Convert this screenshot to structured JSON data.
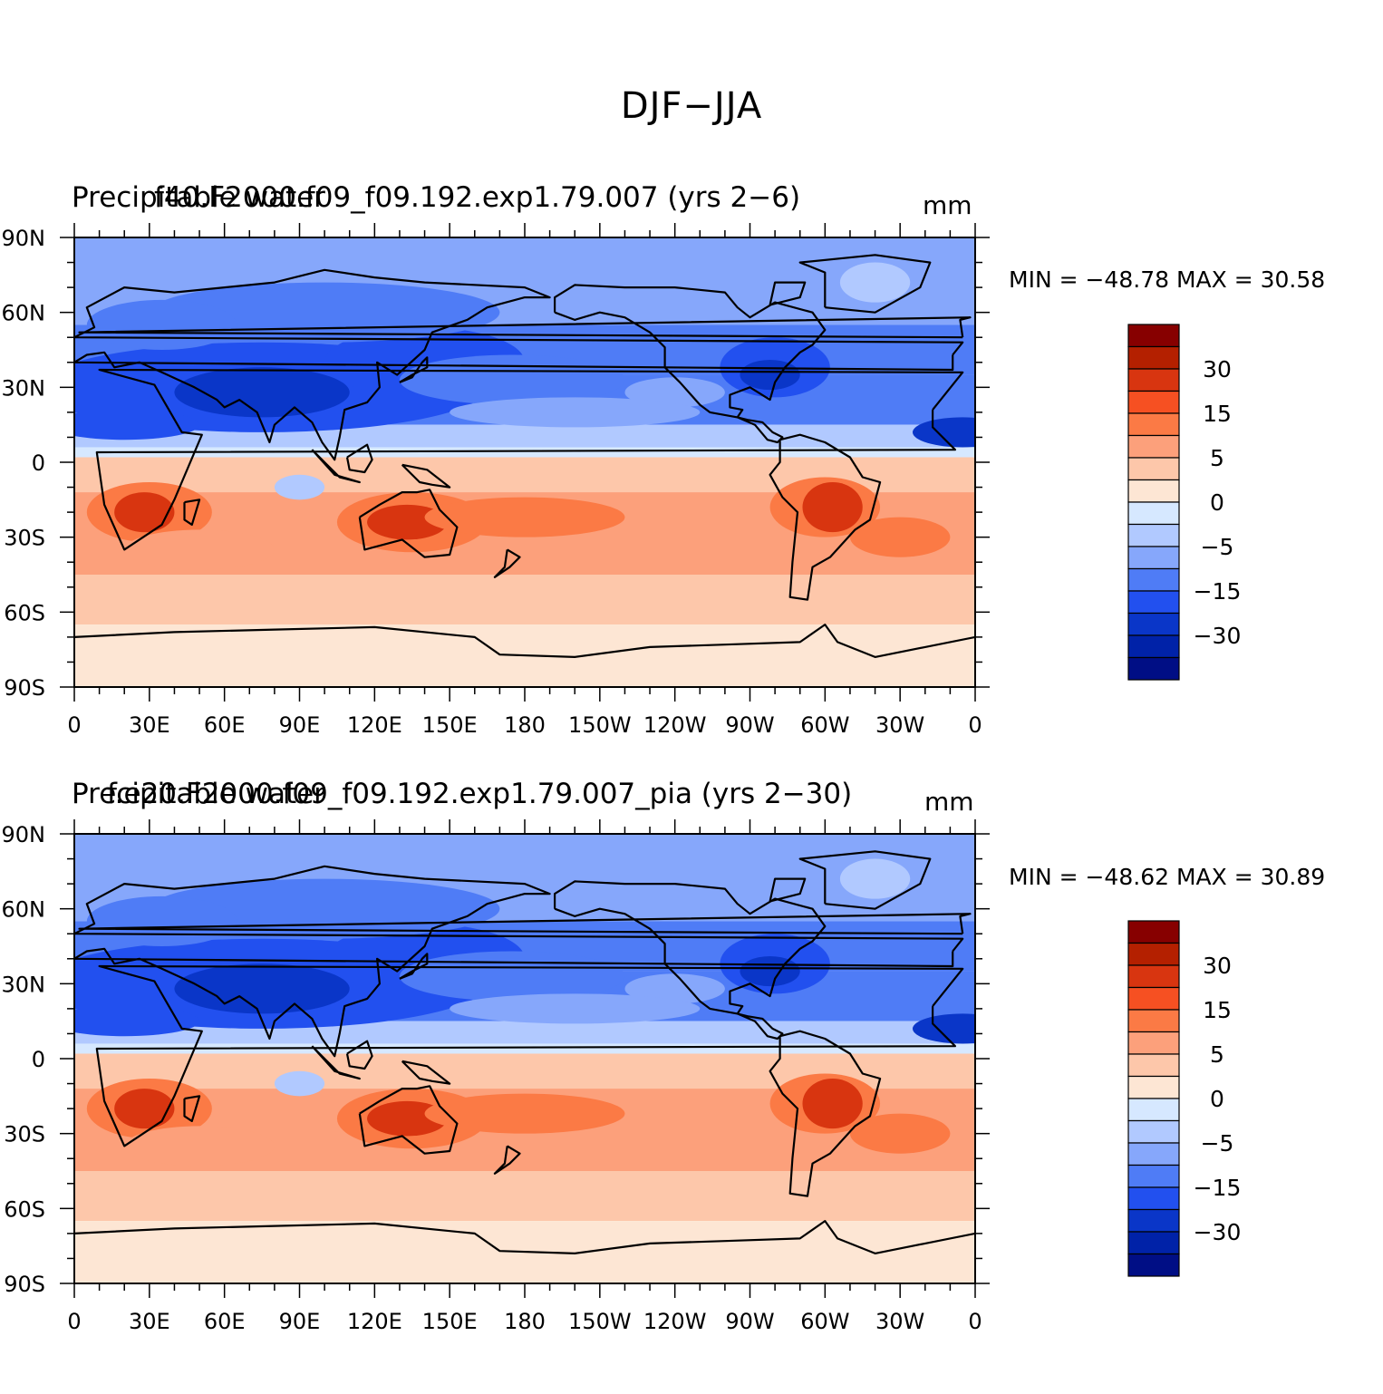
{
  "figure": {
    "title": "DJF−JJA"
  },
  "panels": [
    {
      "case_title": "f40.F2000.f09_f09.192.exp1.79.007 (yrs 2−6)",
      "variable": "Precipitable water",
      "units": "mm",
      "min_max": "MIN = −48.78  MAX =   30.58"
    },
    {
      "case_title": "f.e20.F2000.f09_f09.192.exp1.79.007_pia (yrs 2−30)",
      "variable": "Precipitable water",
      "units": "mm",
      "min_max": "MIN = −48.62  MAX =   30.89"
    }
  ],
  "chart_data": {
    "type": "map",
    "projection": "cylindrical equidistant",
    "lon_ticks": [
      "0",
      "30E",
      "60E",
      "90E",
      "120E",
      "150E",
      "180",
      "150W",
      "120W",
      "90W",
      "60W",
      "30W",
      "0"
    ],
    "lat_ticks": [
      "90N",
      "60N",
      "30N",
      "0",
      "30S",
      "60S",
      "90S"
    ],
    "colorbar": {
      "labels": [
        "30",
        "15",
        "5",
        "0",
        "−5",
        "−15",
        "−30"
      ],
      "colors": [
        "#870000",
        "#b42000",
        "#d83510",
        "#f65022",
        "#fb7a45",
        "#fca07b",
        "#fdc7aa",
        "#fde6d4",
        "#d6e8ff",
        "#b1c9ff",
        "#86a7fb",
        "#4f7cf6",
        "#2250ef",
        "#0a36c8",
        "#0022a8",
        "#000e85"
      ]
    },
    "field_colors": {
      "neg_strong": "#0a36c8",
      "neg_mid": "#2250ef",
      "neg_weak": "#4f7cf6",
      "neg_light": "#86a7fb",
      "neg_faint": "#b1c9ff",
      "near_zero_neg": "#d6e8ff",
      "near_zero_pos": "#fde6d4",
      "pos_faint": "#fdc7aa",
      "pos_weak": "#fca07b",
      "pos_mid": "#fb7a45",
      "pos_strong": "#d83510"
    }
  }
}
